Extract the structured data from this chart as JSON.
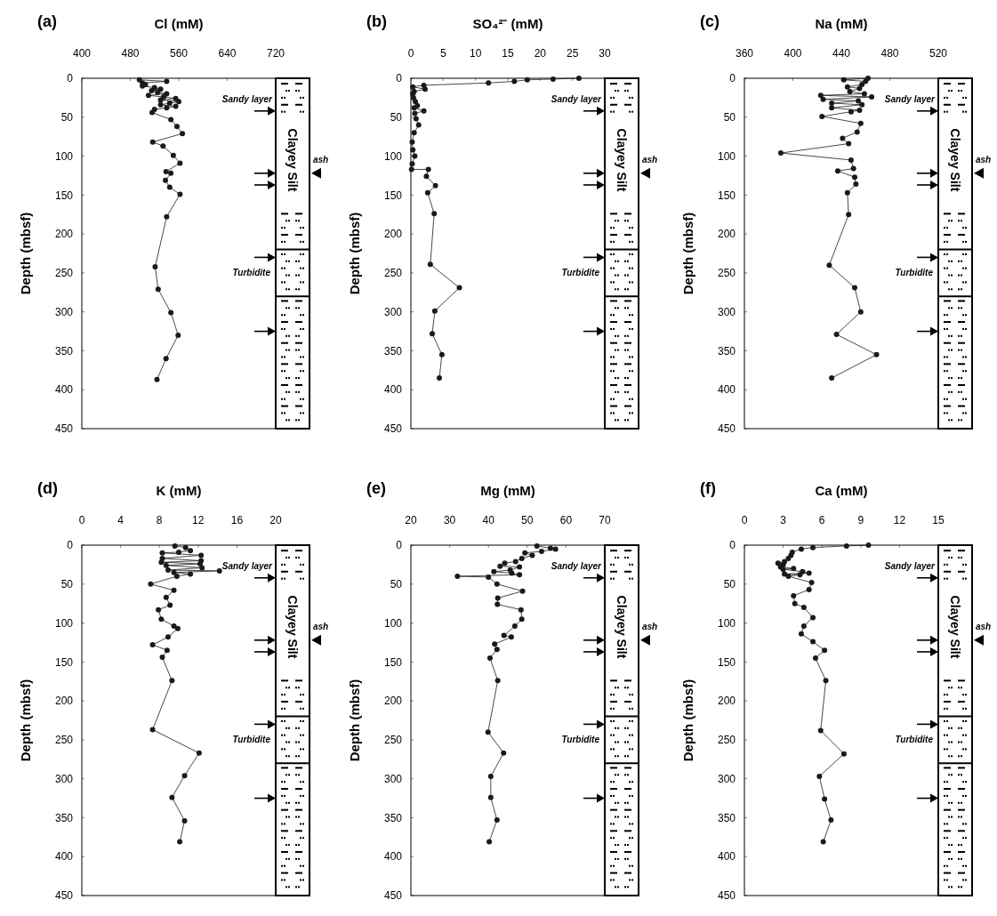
{
  "chart_data": [
    {
      "type": "line",
      "title": "(a)",
      "xlabel": "Cl (mM)",
      "ylabel": "Depth (mbsf)",
      "xlim": [
        400,
        720
      ],
      "xticks": [
        400,
        480,
        560,
        640,
        720
      ],
      "ylim": [
        450,
        0
      ],
      "yticks": [
        0,
        50,
        100,
        150,
        200,
        250,
        300,
        350,
        400,
        450
      ],
      "marker": "circle",
      "grid": false,
      "annotations": [
        "Sandy layer",
        "Clayey Silt",
        "ash",
        "Turbidite"
      ],
      "series": [
        {
          "color": "#1a1a1a",
          "x": [
            495,
            540,
            500,
            505,
            500,
            520,
            530,
            515,
            525,
            540,
            510,
            535,
            555,
            530,
            560,
            545,
            530,
            555,
            540,
            520,
            516,
            547,
            557,
            566,
            517,
            534,
            551,
            562,
            539,
            547,
            538,
            545,
            562,
            540,
            521,
            526,
            547,
            559,
            539,
            524
          ],
          "values": [
            2,
            4,
            6,
            8,
            10,
            12,
            14,
            16,
            18,
            20,
            22,
            24,
            26,
            28,
            30,
            32,
            34,
            36,
            38,
            40,
            44,
            53,
            62,
            71,
            82,
            87,
            99,
            109,
            120,
            122,
            131,
            140,
            149,
            178,
            242,
            271,
            301,
            330,
            360,
            387
          ]
        }
      ]
    },
    {
      "type": "line",
      "title": "(b)",
      "xlabel": "SO₄²⁻ (mM)",
      "ylabel": "Depth (mbsf)",
      "xlim": [
        0,
        30
      ],
      "xticks": [
        0,
        5,
        10,
        15,
        20,
        25,
        30
      ],
      "ylim": [
        450,
        0
      ],
      "yticks": [
        0,
        50,
        100,
        150,
        200,
        250,
        300,
        350,
        400,
        450
      ],
      "marker": "circle",
      "grid": false,
      "annotations": [
        "Sandy layer",
        "Clayey Silt",
        "ash",
        "Turbidite"
      ],
      "series": [
        {
          "color": "#1a1a1a",
          "x": [
            26,
            22,
            18,
            16,
            12,
            2,
            0.3,
            2.2,
            0.5,
            0.3,
            0.4,
            0.7,
            1,
            0.5,
            2,
            0.6,
            0.8,
            1.2,
            0.5,
            0.2,
            0.3,
            0.6,
            0.2,
            0.1,
            2.7,
            2.4,
            3.8,
            2.6,
            3.6,
            3,
            7.5,
            3.7,
            3.3,
            4.8,
            4.4
          ],
          "values": [
            0,
            1,
            2,
            4,
            6,
            9,
            11,
            14,
            17,
            20,
            25,
            30,
            35,
            38,
            42,
            45,
            52,
            60,
            70,
            82,
            92,
            100,
            110,
            117,
            117,
            126,
            138,
            147,
            174,
            239,
            269,
            299,
            328,
            355,
            385
          ]
        }
      ]
    },
    {
      "type": "line",
      "title": "(c)",
      "xlabel": "Na (mM)",
      "ylabel": "Depth (mbsf)",
      "xlim": [
        360,
        520
      ],
      "xticks": [
        360,
        400,
        440,
        480,
        520
      ],
      "ylim": [
        450,
        0
      ],
      "yticks": [
        0,
        50,
        100,
        150,
        200,
        250,
        300,
        350,
        400,
        450
      ],
      "marker": "circle",
      "grid": false,
      "annotations": [
        "Sandy layer",
        "Clayey Silt",
        "ash",
        "Turbidite"
      ],
      "series": [
        {
          "color": "#1a1a1a",
          "x": [
            462,
            442,
            460,
            457,
            445,
            455,
            447,
            459,
            423,
            465,
            425,
            454,
            432,
            457,
            432,
            455,
            448,
            424,
            456,
            453,
            441,
            446,
            390,
            448,
            450,
            437,
            451,
            452,
            445,
            446,
            430,
            451,
            456,
            436,
            469,
            432
          ],
          "values": [
            0,
            2,
            4,
            8,
            11,
            13,
            17,
            20,
            22,
            24,
            27,
            29,
            32,
            34,
            38,
            41,
            43,
            49,
            58,
            69,
            77,
            84,
            96,
            105,
            116,
            119,
            127,
            136,
            147,
            175,
            240,
            269,
            300,
            329,
            355,
            385
          ]
        }
      ]
    },
    {
      "type": "line",
      "title": "(d)",
      "xlabel": "K (mM)",
      "ylabel": "Depth (mbsf)",
      "xlim": [
        0,
        20
      ],
      "xticks": [
        0,
        4,
        8,
        12,
        16,
        20
      ],
      "ylim": [
        450,
        0
      ],
      "yticks": [
        0,
        50,
        100,
        150,
        200,
        250,
        300,
        350,
        400,
        450
      ],
      "marker": "circle",
      "grid": false,
      "annotations": [
        "Sandy layer",
        "Clayey Silt",
        "ash",
        "Turbidite"
      ],
      "series": [
        {
          "color": "#1a1a1a",
          "x": [
            9.6,
            10.7,
            11.2,
            10,
            8.3,
            12.3,
            8.3,
            12.3,
            8.2,
            12.2,
            8.7,
            12.4,
            8.9,
            14.2,
            9.5,
            11.2,
            9.8,
            7.1,
            9.5,
            8.7,
            9.1,
            7.9,
            8.2,
            9.5,
            9.9,
            8.9,
            7.3,
            8.8,
            8.3,
            9.3,
            7.3,
            12.1,
            10.6,
            9.3,
            10.6,
            10.1
          ],
          "values": [
            1,
            3,
            7,
            9,
            10,
            13,
            17,
            20,
            22,
            24,
            26,
            29,
            32,
            33,
            35,
            37,
            40,
            50,
            58,
            67,
            77,
            83,
            95,
            104,
            107,
            118,
            128,
            135,
            144,
            174,
            237,
            267,
            296,
            324,
            354,
            381
          ]
        }
      ]
    },
    {
      "type": "line",
      "title": "(e)",
      "xlabel": "Mg (mM)",
      "ylabel": "Depth (mbsf)",
      "xlim": [
        20,
        70
      ],
      "xticks": [
        20,
        30,
        40,
        50,
        60,
        70
      ],
      "ylim": [
        450,
        0
      ],
      "yticks": [
        0,
        50,
        100,
        150,
        200,
        250,
        300,
        350,
        400,
        450
      ],
      "marker": "circle",
      "grid": false,
      "annotations": [
        "Sandy layer",
        "Clayey Silt",
        "ash",
        "Turbidite"
      ],
      "series": [
        {
          "color": "#1a1a1a",
          "x": [
            52.5,
            56,
            57.3,
            53.7,
            49.4,
            51.3,
            48.6,
            47,
            44.2,
            43,
            48,
            45.6,
            41.4,
            46,
            48,
            32,
            40,
            42.2,
            48.8,
            42.4,
            42.3,
            48.4,
            48.6,
            46.8,
            44,
            45.9,
            41.6,
            42.2,
            40.4,
            42.4,
            39.9,
            43.9,
            40.6,
            40.6,
            42.2,
            40.2
          ],
          "values": [
            1,
            4,
            5,
            8,
            10,
            13,
            17,
            21,
            23,
            27,
            28,
            32,
            34,
            36,
            38,
            40,
            41,
            50,
            59,
            68,
            76,
            83,
            95,
            104,
            116,
            118,
            127,
            134,
            145,
            174,
            240,
            267,
            297,
            324,
            353,
            381
          ]
        }
      ]
    },
    {
      "type": "line",
      "title": "(f)",
      "xlabel": "Ca (mM)",
      "ylabel": "Depth (mbsf)",
      "xlim": [
        0,
        15
      ],
      "xticks": [
        0,
        3,
        6,
        9,
        12,
        15
      ],
      "ylim": [
        450,
        0
      ],
      "yticks": [
        0,
        50,
        100,
        150,
        200,
        250,
        300,
        350,
        400,
        450
      ],
      "marker": "circle",
      "grid": false,
      "annotations": [
        "Sandy layer",
        "Clayey Silt",
        "ash",
        "Turbidite"
      ],
      "series": [
        {
          "color": "#1a1a1a",
          "x": [
            9.6,
            7.9,
            5.3,
            4.4,
            3.7,
            3.6,
            3.4,
            3.1,
            2.6,
            3,
            2.8,
            3.8,
            3,
            4.5,
            5,
            3.1,
            4.3,
            3.4,
            5.2,
            5,
            3.8,
            3.9,
            4.6,
            5.3,
            4.6,
            4.4,
            5.3,
            6.2,
            5.5,
            6.3,
            5.9,
            7.7,
            5.8,
            6.2,
            6.7,
            6.1
          ],
          "values": [
            0,
            1,
            3,
            5,
            9,
            13,
            17,
            21,
            23,
            25,
            28,
            30,
            31,
            34,
            36,
            37,
            38,
            40,
            48,
            57,
            65,
            75,
            80,
            93,
            104,
            114,
            124,
            135,
            145,
            174,
            238,
            268,
            297,
            326,
            353,
            381
          ]
        }
      ]
    }
  ]
}
